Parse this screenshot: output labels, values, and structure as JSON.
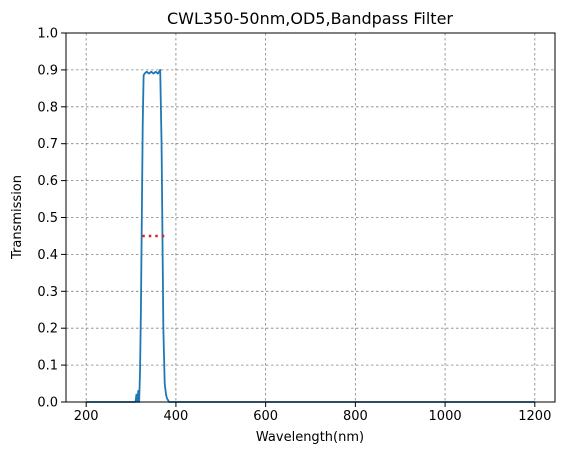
{
  "chart_data": {
    "type": "line",
    "title": "CWL350-50nm,OD5,Bandpass Filter",
    "xlabel": "Wavelength(nm)",
    "ylabel": "Transmission",
    "xlim": [
      155,
      1245
    ],
    "ylim": [
      0.0,
      1.0
    ],
    "xticks": [
      200,
      400,
      600,
      800,
      1000,
      1200
    ],
    "yticks": [
      0.0,
      0.1,
      0.2,
      0.3,
      0.4,
      0.5,
      0.6,
      0.7,
      0.8,
      0.9,
      1.0
    ],
    "grid": true,
    "series_color": "#1f77b4",
    "marker_color": "#d62728",
    "series": [
      {
        "x": [
          200,
          310,
          312,
          314,
          316,
          318,
          320,
          322,
          324,
          326,
          328,
          330,
          335,
          340,
          345,
          350,
          355,
          360,
          365,
          368,
          370,
          372,
          375,
          378,
          380,
          385,
          390,
          400,
          500,
          600,
          700,
          800,
          900,
          1000,
          1100,
          1200
        ],
        "y": [
          0.0,
          0.0,
          0.02,
          0.0,
          0.03,
          0.0,
          0.08,
          0.25,
          0.5,
          0.75,
          0.885,
          0.89,
          0.895,
          0.89,
          0.895,
          0.89,
          0.895,
          0.89,
          0.9,
          0.7,
          0.45,
          0.2,
          0.05,
          0.02,
          0.01,
          0.0,
          0.0,
          0.0,
          0.0,
          0.0,
          0.0,
          0.0,
          0.0,
          0.0,
          0.0,
          0.0
        ]
      }
    ],
    "annotation_line": {
      "x": [
        325,
        375
      ],
      "y": [
        0.45,
        0.45
      ],
      "style": "dotted"
    }
  }
}
